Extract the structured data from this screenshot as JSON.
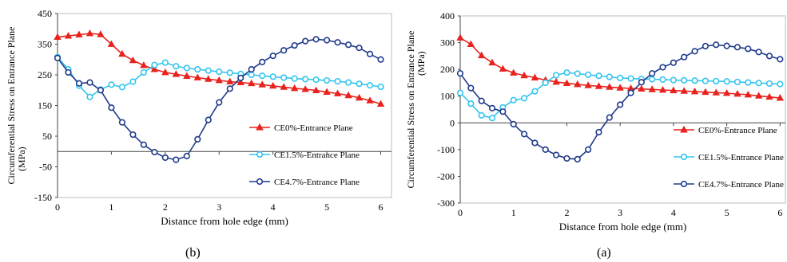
{
  "chart_data": [
    {
      "type": "line",
      "panel_label": "(b)",
      "xlabel": "Distance from hole edge (mm)",
      "ylabel_line1": "Circumferential Stress on Entrance Plane",
      "ylabel_line2": "(MPa)",
      "xlim": [
        0,
        6.2
      ],
      "ylim": [
        -150,
        450
      ],
      "xticks": [
        0,
        1,
        2,
        3,
        4,
        5,
        6
      ],
      "yticks": [
        -150,
        -50,
        50,
        150,
        250,
        350,
        450
      ],
      "grid": false,
      "legend_position": "right-middle",
      "series": [
        {
          "name": "CE0%-Entrance Plane",
          "color": "#e8221d",
          "marker": "triangle",
          "x": [
            0,
            0.2,
            0.4,
            0.6,
            0.8,
            1.0,
            1.2,
            1.4,
            1.6,
            1.8,
            2.0,
            2.2,
            2.4,
            2.6,
            2.8,
            3.0,
            3.2,
            3.4,
            3.6,
            3.8,
            4.0,
            4.2,
            4.4,
            4.6,
            4.8,
            5.0,
            5.2,
            5.4,
            5.6,
            5.8,
            6.0
          ],
          "y": [
            373,
            377,
            381,
            385,
            382,
            350,
            318,
            297,
            281,
            268,
            258,
            252,
            246,
            241,
            236,
            232,
            228,
            225,
            222,
            218,
            214,
            210,
            206,
            203,
            199,
            194,
            189,
            183,
            175,
            166,
            155
          ]
        },
        {
          "name": "CE1.5%-Entrance Plane",
          "color": "#33c5ef",
          "marker": "circle",
          "x": [
            0,
            0.2,
            0.4,
            0.6,
            0.8,
            1.0,
            1.2,
            1.4,
            1.6,
            1.8,
            2.0,
            2.2,
            2.4,
            2.6,
            2.8,
            3.0,
            3.2,
            3.4,
            3.6,
            3.8,
            4.0,
            4.2,
            4.4,
            4.6,
            4.8,
            5.0,
            5.2,
            5.4,
            5.6,
            5.8,
            6.0
          ],
          "y": [
            308,
            268,
            215,
            178,
            202,
            218,
            210,
            228,
            258,
            282,
            290,
            278,
            272,
            268,
            264,
            260,
            257,
            253,
            250,
            247,
            244,
            241,
            238,
            236,
            234,
            232,
            229,
            225,
            221,
            216,
            211
          ]
        },
        {
          "name": "CE4.7%-Entrance Plane",
          "color": "#1f3a8a",
          "marker": "circle",
          "x": [
            0,
            0.2,
            0.4,
            0.6,
            0.8,
            1.0,
            1.2,
            1.4,
            1.6,
            1.8,
            2.0,
            2.2,
            2.4,
            2.6,
            2.8,
            3.0,
            3.2,
            3.4,
            3.6,
            3.8,
            4.0,
            4.2,
            4.4,
            4.6,
            4.8,
            5.0,
            5.2,
            5.4,
            5.6,
            5.8,
            6.0
          ],
          "y": [
            305,
            258,
            222,
            225,
            200,
            143,
            95,
            55,
            22,
            -2,
            -20,
            -27,
            -15,
            40,
            103,
            160,
            205,
            240,
            268,
            292,
            312,
            330,
            346,
            360,
            366,
            363,
            356,
            348,
            338,
            318,
            300
          ]
        }
      ]
    },
    {
      "type": "line",
      "panel_label": "(a)",
      "xlabel": "Distance from hole edge (mm)",
      "ylabel_line1": "Circumferential Stress on Entrance Plane",
      "ylabel_line2": "(MPa)",
      "xlim": [
        0,
        6.1
      ],
      "ylim": [
        -300,
        400
      ],
      "xticks": [
        0,
        1,
        2,
        3,
        4,
        5,
        6
      ],
      "yticks": [
        -300,
        -200,
        -100,
        0,
        100,
        200,
        300,
        400
      ],
      "grid": false,
      "legend_position": "right-middle",
      "series": [
        {
          "name": "CE0%-Entrance Plane",
          "color": "#e8221d",
          "marker": "triangle",
          "x": [
            0,
            0.2,
            0.4,
            0.6,
            0.8,
            1.0,
            1.2,
            1.4,
            1.6,
            1.8,
            2.0,
            2.2,
            2.4,
            2.6,
            2.8,
            3.0,
            3.2,
            3.4,
            3.6,
            3.8,
            4.0,
            4.2,
            4.4,
            4.6,
            4.8,
            5.0,
            5.2,
            5.4,
            5.6,
            5.8,
            6.0
          ],
          "y": [
            318,
            294,
            252,
            225,
            202,
            187,
            177,
            169,
            160,
            153,
            148,
            144,
            140,
            137,
            134,
            131,
            129,
            127,
            125,
            123,
            121,
            119,
            117,
            115,
            113,
            111,
            108,
            105,
            101,
            97,
            93
          ]
        },
        {
          "name": "CE1.5%-Entrance Plane",
          "color": "#33c5ef",
          "marker": "circle",
          "x": [
            0,
            0.2,
            0.4,
            0.6,
            0.8,
            1.0,
            1.2,
            1.4,
            1.6,
            1.8,
            2.0,
            2.2,
            2.4,
            2.6,
            2.8,
            3.0,
            3.2,
            3.4,
            3.6,
            3.8,
            4.0,
            4.2,
            4.4,
            4.6,
            4.8,
            5.0,
            5.2,
            5.4,
            5.6,
            5.8,
            6.0
          ],
          "y": [
            112,
            72,
            28,
            18,
            58,
            85,
            92,
            118,
            150,
            178,
            188,
            184,
            180,
            176,
            172,
            168,
            166,
            164,
            163,
            162,
            160,
            159,
            158,
            157,
            156,
            155,
            153,
            151,
            149,
            147,
            145
          ]
        },
        {
          "name": "CE4.7%-Entrance Plane",
          "color": "#1f3a8a",
          "marker": "circle",
          "x": [
            0,
            0.2,
            0.4,
            0.6,
            0.8,
            1.0,
            1.2,
            1.4,
            1.6,
            1.8,
            2.0,
            2.2,
            2.4,
            2.6,
            2.8,
            3.0,
            3.2,
            3.4,
            3.6,
            3.8,
            4.0,
            4.2,
            4.4,
            4.6,
            4.8,
            5.0,
            5.2,
            5.4,
            5.6,
            5.8,
            6.0
          ],
          "y": [
            185,
            130,
            82,
            55,
            42,
            -5,
            -42,
            -75,
            -100,
            -120,
            -133,
            -136,
            -100,
            -35,
            20,
            68,
            112,
            152,
            185,
            208,
            225,
            246,
            268,
            287,
            292,
            288,
            283,
            277,
            265,
            250,
            238
          ]
        }
      ]
    }
  ]
}
